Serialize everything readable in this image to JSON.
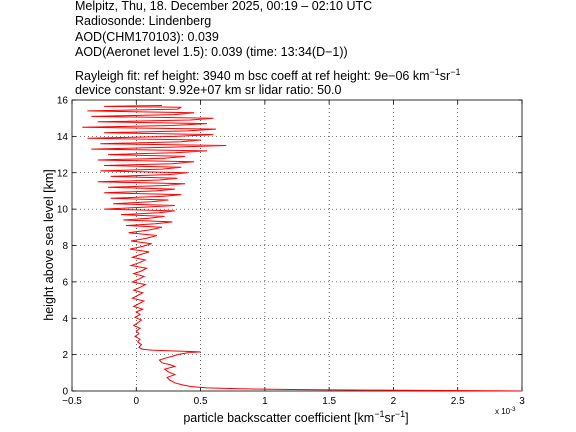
{
  "header": {
    "line1": "Melpitz, Thu, 18. December 2025, 00:19 – 02:10 UTC",
    "line2": "Radiosonde: Lindenberg",
    "line3": "AOD(CHM170103): 0.039",
    "line4": "AOD(Aeronet level 1.5): 0.039   (time: 13:34(D−1))",
    "line5a": "Rayleigh fit:     ref height: 3940 m     bsc coeff at ref height: 9e−06 km",
    "line5b": "sr",
    "line6": "device constant: 9.92e+07 km sr     lidar ratio: 50.0"
  },
  "chart_data": {
    "type": "line",
    "xlabel": "particle backscatter coefficient [km",
    "xlabel_unit_mid": "sr",
    "xlabel_end": "]",
    "ylabel": "height above sea level [km]",
    "x_multiplier": "x 10",
    "x_multiplier_exp": "-3",
    "xlim": [
      -0.5,
      3
    ],
    "ylim": [
      0,
      16
    ],
    "xticks": [
      "−0.5",
      "0",
      "0.5",
      "1",
      "1.5",
      "2",
      "2.5",
      "3"
    ],
    "xtick_values": [
      -0.5,
      0,
      0.5,
      1,
      1.5,
      2,
      2.5,
      3
    ],
    "yticks": [
      "0",
      "2",
      "4",
      "6",
      "8",
      "10",
      "12",
      "14",
      "16"
    ],
    "ytick_values": [
      0,
      2,
      4,
      6,
      8,
      10,
      12,
      14,
      16
    ],
    "grid": true,
    "series_color": "#ff0000",
    "series": [
      {
        "points": [
          [
            3.0,
            0.0
          ],
          [
            2.6,
            0.02
          ],
          [
            1.8,
            0.05
          ],
          [
            1.2,
            0.08
          ],
          [
            0.8,
            0.12
          ],
          [
            0.55,
            0.17
          ],
          [
            0.42,
            0.25
          ],
          [
            0.35,
            0.35
          ],
          [
            0.3,
            0.45
          ],
          [
            0.26,
            0.6
          ],
          [
            0.24,
            0.75
          ],
          [
            0.3,
            0.9
          ],
          [
            0.25,
            1.05
          ],
          [
            0.22,
            1.2
          ],
          [
            0.3,
            1.35
          ],
          [
            0.26,
            1.45
          ],
          [
            0.2,
            1.55
          ],
          [
            0.18,
            1.7
          ],
          [
            0.22,
            1.8
          ],
          [
            0.28,
            1.9
          ],
          [
            0.32,
            2.0
          ],
          [
            0.4,
            2.1
          ],
          [
            0.5,
            2.15
          ],
          [
            0.3,
            2.2
          ],
          [
            0.12,
            2.25
          ],
          [
            0.05,
            2.3
          ],
          [
            0.02,
            2.4
          ],
          [
            0.04,
            2.55
          ],
          [
            0.01,
            2.7
          ],
          [
            0.03,
            2.85
          ],
          [
            -0.01,
            3.0
          ],
          [
            0.02,
            3.15
          ],
          [
            0.0,
            3.3
          ],
          [
            0.03,
            3.45
          ],
          [
            -0.02,
            3.6
          ],
          [
            0.01,
            3.75
          ],
          [
            0.04,
            3.9
          ],
          [
            -0.01,
            4.05
          ],
          [
            0.03,
            4.2
          ],
          [
            0.0,
            4.35
          ],
          [
            0.05,
            4.5
          ],
          [
            -0.02,
            4.65
          ],
          [
            0.02,
            4.8
          ],
          [
            0.06,
            4.95
          ],
          [
            -0.03,
            5.1
          ],
          [
            0.01,
            5.25
          ],
          [
            0.05,
            5.4
          ],
          [
            -0.02,
            5.55
          ],
          [
            0.03,
            5.7
          ],
          [
            0.07,
            5.85
          ],
          [
            -0.03,
            6.0
          ],
          [
            0.02,
            6.15
          ],
          [
            0.06,
            6.3
          ],
          [
            -0.02,
            6.45
          ],
          [
            0.04,
            6.6
          ],
          [
            0.08,
            6.75
          ],
          [
            -0.04,
            6.9
          ],
          [
            0.02,
            7.05
          ],
          [
            0.07,
            7.2
          ],
          [
            -0.03,
            7.35
          ],
          [
            0.03,
            7.5
          ],
          [
            0.1,
            7.65
          ],
          [
            -0.05,
            7.8
          ],
          [
            0.05,
            7.95
          ],
          [
            0.12,
            8.1
          ],
          [
            -0.04,
            8.25
          ],
          [
            0.08,
            8.4
          ],
          [
            0.16,
            8.55
          ],
          [
            -0.06,
            8.7
          ],
          [
            0.1,
            8.85
          ],
          [
            0.2,
            9.0
          ],
          [
            -0.08,
            9.1
          ],
          [
            0.15,
            9.2
          ],
          [
            0.28,
            9.3
          ],
          [
            -0.1,
            9.4
          ],
          [
            0.1,
            9.5
          ],
          [
            0.22,
            9.6
          ],
          [
            -0.12,
            9.7
          ],
          [
            0.18,
            9.8
          ],
          [
            0.3,
            9.9
          ],
          [
            -0.25,
            10.0
          ],
          [
            0.05,
            10.1
          ],
          [
            0.3,
            10.2
          ],
          [
            -0.18,
            10.3
          ],
          [
            0.12,
            10.4
          ],
          [
            0.25,
            10.5
          ],
          [
            -0.2,
            10.6
          ],
          [
            0.2,
            10.7
          ],
          [
            0.35,
            10.8
          ],
          [
            -0.25,
            10.9
          ],
          [
            0.15,
            11.0
          ],
          [
            0.3,
            11.1
          ],
          [
            -0.22,
            11.2
          ],
          [
            0.22,
            11.3
          ],
          [
            0.38,
            11.4
          ],
          [
            -0.3,
            11.5
          ],
          [
            0.18,
            11.6
          ],
          [
            0.32,
            11.7
          ],
          [
            -0.2,
            11.8
          ],
          [
            0.25,
            11.9
          ],
          [
            0.4,
            12.0
          ],
          [
            -0.28,
            12.1
          ],
          [
            0.2,
            12.2
          ],
          [
            0.35,
            12.3
          ],
          [
            -0.25,
            12.4
          ],
          [
            0.28,
            12.5
          ],
          [
            0.45,
            12.6
          ],
          [
            -0.3,
            12.7
          ],
          [
            0.22,
            12.8
          ],
          [
            0.38,
            12.9
          ],
          [
            -0.22,
            13.0
          ],
          [
            0.3,
            13.1
          ],
          [
            0.55,
            13.2
          ],
          [
            -0.35,
            13.3
          ],
          [
            0.25,
            13.4
          ],
          [
            0.7,
            13.5
          ],
          [
            -0.28,
            13.6
          ],
          [
            0.35,
            13.7
          ],
          [
            0.5,
            13.8
          ],
          [
            -0.38,
            13.9
          ],
          [
            0.3,
            14.0
          ],
          [
            0.6,
            14.1
          ],
          [
            -0.25,
            14.2
          ],
          [
            0.4,
            14.3
          ],
          [
            0.62,
            14.4
          ],
          [
            -0.42,
            14.5
          ],
          [
            0.28,
            14.6
          ],
          [
            0.55,
            14.7
          ],
          [
            -0.3,
            14.8
          ],
          [
            0.42,
            14.9
          ],
          [
            0.6,
            15.0
          ],
          [
            -0.35,
            15.1
          ],
          [
            0.3,
            15.2
          ],
          [
            0.45,
            15.3
          ],
          [
            -0.38,
            15.4
          ],
          [
            0.32,
            15.5
          ],
          [
            0.35,
            15.6
          ],
          [
            -0.25,
            15.65
          ],
          [
            0.2,
            15.7
          ]
        ]
      }
    ]
  }
}
